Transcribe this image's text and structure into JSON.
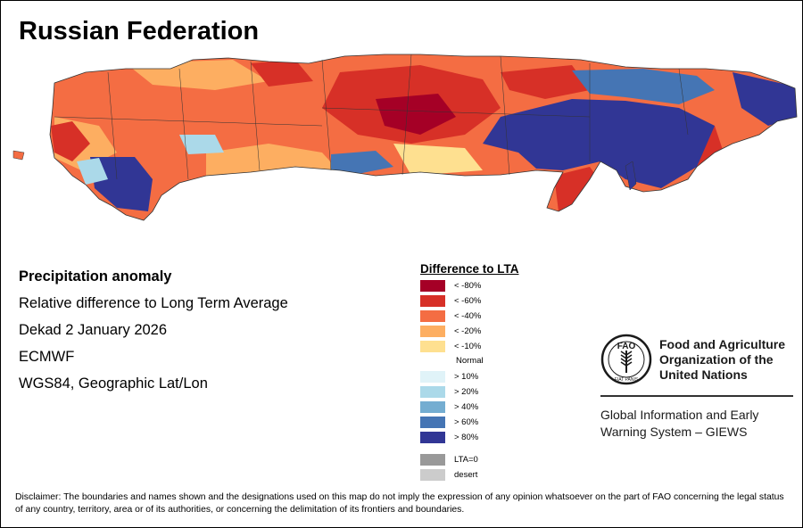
{
  "title": "Russian Federation",
  "info": {
    "heading": "Precipitation anomaly",
    "line1": "Relative difference to Long Term Average",
    "line2": "Dekad 2 January 2026",
    "line3": "ECMWF",
    "line4": "WGS84, Geographic Lat/Lon"
  },
  "legend": {
    "title": "Difference to LTA",
    "items": [
      {
        "label": "< -80%",
        "color": "#a50026"
      },
      {
        "label": "< -60%",
        "color": "#d73027"
      },
      {
        "label": "< -40%",
        "color": "#f46d43"
      },
      {
        "label": "< -20%",
        "color": "#fdae61"
      },
      {
        "label": "< -10%",
        "color": "#fee090"
      },
      {
        "label": "Normal",
        "color": "#ffffff"
      },
      {
        "label": "> 10%",
        "color": "#e0f3f8"
      },
      {
        "label": "> 20%",
        "color": "#abd9e9"
      },
      {
        "label": "> 40%",
        "color": "#74add1"
      },
      {
        "label": "> 60%",
        "color": "#4575b4"
      },
      {
        "label": "> 80%",
        "color": "#313695"
      }
    ],
    "extra": [
      {
        "label": "LTA=0",
        "color": "#999999"
      },
      {
        "label": "desert",
        "color": "#cccccc"
      }
    ]
  },
  "fao": {
    "name": "Food and Agriculture Organization of the United Nations",
    "giews": "Global Information and Early Warning System – GIEWS",
    "emblem_text": "FAO",
    "emblem_motto": "FIAT PANIS"
  },
  "disclaimer": "Disclaimer: The boundaries and names shown and the designations used on this map do not imply the expression of any opinion whatsoever on the part of FAO concerning the legal status of any country, territory, area or of its authorities, or concerning the delimitation of its frontiers and boundaries."
}
